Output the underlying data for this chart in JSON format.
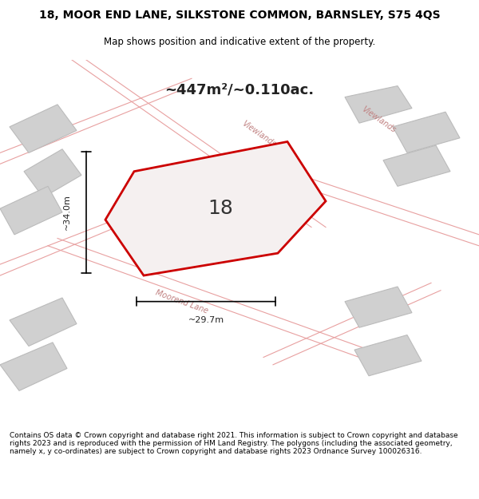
{
  "title_line1": "18, MOOR END LANE, SILKSTONE COMMON, BARNSLEY, S75 4QS",
  "title_line2": "Map shows position and indicative extent of the property.",
  "area_text": "~447m²/~0.110ac.",
  "property_number": "18",
  "dim_vertical": "~34.0m",
  "dim_horizontal": "~29.7m",
  "footer_text": "Contains OS data © Crown copyright and database right 2021. This information is subject to Crown copyright and database rights 2023 and is reproduced with the permission of HM Land Registry. The polygons (including the associated geometry, namely x, y co-ordinates) are subject to Crown copyright and database rights 2023 Ordnance Survey 100026316.",
  "bg_color": "#f5f5f5",
  "map_bg": "#f0eeee",
  "plot_outline_color": "#cc0000",
  "plot_fill_color": "#f5f5f5",
  "road_label1": "Viewlands",
  "road_label2": "Moorend Lane",
  "building_color": "#d8d8d8",
  "building_outline": "#bbbbbb",
  "road_line_color": "#e8a0a0",
  "dim_line_color": "#000000"
}
